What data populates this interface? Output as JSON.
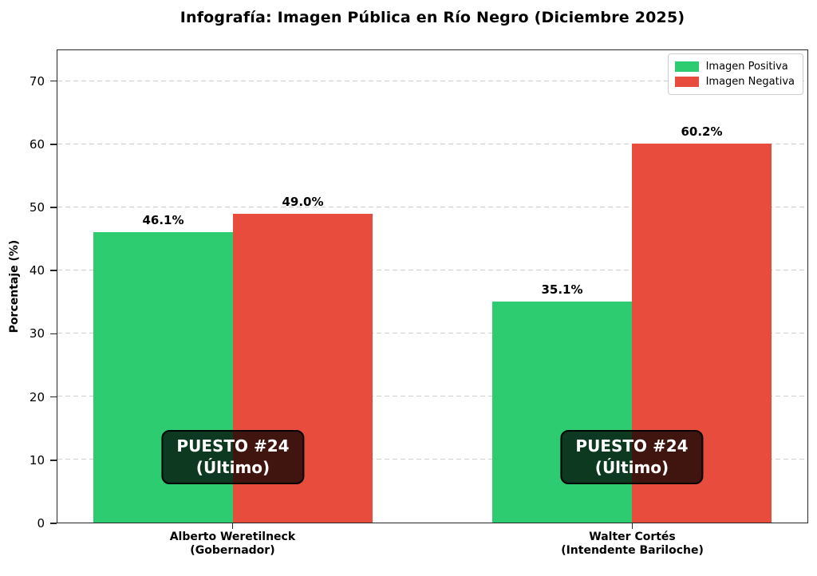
{
  "chart_data": {
    "type": "bar",
    "title": "Infografía: Imagen Pública en Río Negro (Diciembre 2025)",
    "ylabel": "Porcentaje (%)",
    "ylim": [
      0,
      75
    ],
    "yticks": [
      0,
      10,
      20,
      30,
      40,
      50,
      60,
      70
    ],
    "xlim": [
      -0.44,
      1.44
    ],
    "bar_width": 0.35,
    "grid": "horizontal-dashed",
    "legend_position": "upper-right",
    "categories": [
      {
        "line1": "Alberto Weretilneck",
        "line2": "(Gobernador)"
      },
      {
        "line1": "Walter Cortés",
        "line2": "(Intendente Bariloche)"
      }
    ],
    "series": [
      {
        "name": "Imagen Positiva",
        "color": "#2ecc71",
        "values": [
          46.1,
          35.1
        ],
        "labels": [
          "46.1%",
          "35.1%"
        ]
      },
      {
        "name": "Imagen Negativa",
        "color": "#e74c3c",
        "values": [
          49.0,
          60.2
        ],
        "labels": [
          "49.0%",
          "60.2%"
        ]
      }
    ],
    "annotations": [
      {
        "category_index": 0,
        "line1": "PUESTO #24",
        "line2": "(Último)"
      },
      {
        "category_index": 1,
        "line1": "PUESTO #24",
        "line2": "(Último)"
      }
    ],
    "annotation_style": {
      "bg": "rgba(0,0,0,0.72)",
      "border": "#000000",
      "text_color": "#ffffff"
    },
    "colors": {
      "positive": "#2ecc71",
      "negative": "#e74c3c",
      "grid": "#cdcdcd",
      "spine": "#262626"
    }
  }
}
